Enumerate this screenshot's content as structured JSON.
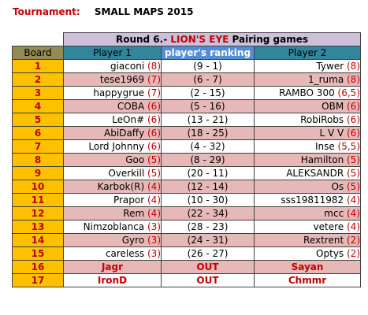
{
  "tournament": {
    "label": "Tournament:",
    "name": "SMALL MAPS 2015"
  },
  "round": {
    "prefix": "Round 6.-",
    "map": "LION'S EYE",
    "suffix": "Pairing games"
  },
  "headers": {
    "board": "Board",
    "player1": "Player 1",
    "ranking": "player's ranking",
    "player2": "Player 2"
  },
  "rows": [
    {
      "board": "1",
      "p1": "giaconi",
      "p1pts": "(8)",
      "rank": "(9 - 1)",
      "p2": "Tywer",
      "p2pts": "(8)",
      "style": "white"
    },
    {
      "board": "2",
      "p1": "tese1969",
      "p1pts": "(7)",
      "rank": "(6 - 7)",
      "p2": "1_ruma",
      "p2pts": "(8)",
      "style": "pink"
    },
    {
      "board": "3",
      "p1": "happygrue",
      "p1pts": "(7)",
      "rank": "(2 - 15)",
      "p2": "RAMBO 300",
      "p2pts": "(6,5)",
      "style": "white"
    },
    {
      "board": "4",
      "p1": "COBA",
      "p1pts": "(6)",
      "rank": "(5 - 16)",
      "p2": "OBM",
      "p2pts": "(6)",
      "style": "pink"
    },
    {
      "board": "5",
      "p1": "LeOn#",
      "p1pts": "(6)",
      "rank": "(13 - 21)",
      "p2": "RobiRobs",
      "p2pts": "(6)",
      "style": "white"
    },
    {
      "board": "6",
      "p1": "AbiDaffy",
      "p1pts": "(6)",
      "rank": "(18 - 25)",
      "p2": "L V V",
      "p2pts": "(6)",
      "style": "pink"
    },
    {
      "board": "7",
      "p1": "Lord Johnny",
      "p1pts": " (6)",
      "rank": "(4 - 32)",
      "p2": "Inse",
      "p2pts": "(5,5)",
      "style": "white"
    },
    {
      "board": "8",
      "p1": "Goo",
      "p1pts": "(5)",
      "rank": "(8 - 29)",
      "p2": "Hamilton",
      "p2pts": "(5)",
      "style": "pink"
    },
    {
      "board": "9",
      "p1": "Overkill",
      "p1pts": "(5)",
      "rank": "(20 - 11)",
      "p2": "ALEKSANDR",
      "p2pts": "(5)",
      "style": "white"
    },
    {
      "board": "10",
      "p1": "Karbok(R)",
      "p1pts": "(4)",
      "rank": "(12 - 14)",
      "p2": "Os",
      "p2pts": "(5)",
      "style": "pink"
    },
    {
      "board": "11",
      "p1": "Prapor",
      "p1pts": "(4)",
      "rank": "(10 - 30)",
      "p2": "sss19811982",
      "p2pts": "(4)",
      "style": "white"
    },
    {
      "board": "12",
      "p1": "Rem",
      "p1pts": "(4)",
      "rank": "(22 - 34)",
      "p2": "mcc",
      "p2pts": "(4)",
      "style": "pink"
    },
    {
      "board": "13",
      "p1": "Nimzoblanca",
      "p1pts": "(3)",
      "rank": "(28 - 23)",
      "p2": "vetere",
      "p2pts": "(4)",
      "style": "white"
    },
    {
      "board": "14",
      "p1": "Gyro",
      "p1pts": "(3)",
      "rank": "(24 - 31)",
      "p2": "Rextrent",
      "p2pts": "(2)",
      "style": "pink"
    },
    {
      "board": "15",
      "p1": "careless",
      "p1pts": "(3)",
      "rank": "(26 - 27)",
      "p2": "Optys",
      "p2pts": "(2)",
      "style": "white"
    },
    {
      "board": "16",
      "p1": "Jagr",
      "p1pts": "",
      "rank": "OUT",
      "p2": "Sayan",
      "p2pts": "",
      "style": "pink red"
    },
    {
      "board": "17",
      "p1": "IronD",
      "p1pts": "",
      "rank": "OUT",
      "p2": "Chmmr",
      "p2pts": "",
      "style": "white red"
    }
  ]
}
